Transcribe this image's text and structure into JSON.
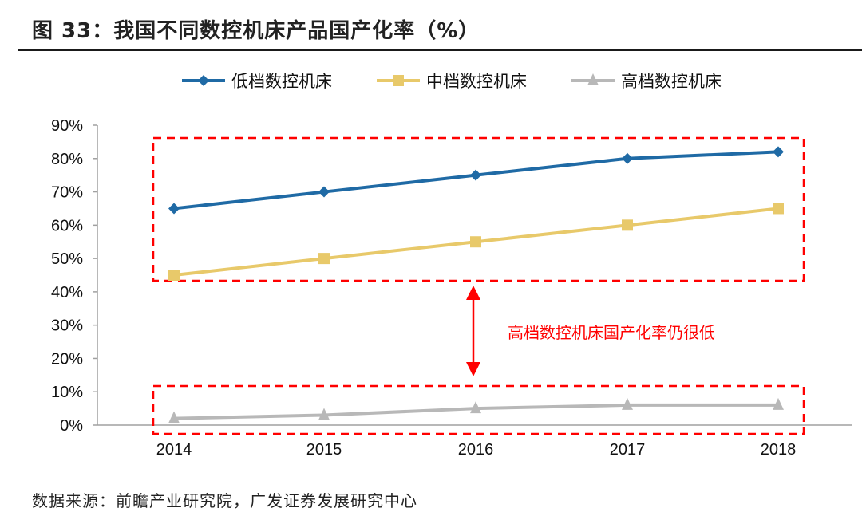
{
  "title": "图 33：我国不同数控机床产品国产化率（%）",
  "source": "数据来源：前瞻产业研究院，广发证券发展研究中心",
  "chart_data": {
    "type": "line",
    "categories": [
      "2014",
      "2015",
      "2016",
      "2017",
      "2018"
    ],
    "ylim": [
      0,
      90
    ],
    "yticks": [
      "0%",
      "10%",
      "20%",
      "30%",
      "40%",
      "50%",
      "60%",
      "70%",
      "80%",
      "90%"
    ],
    "legend_position": "top",
    "series": [
      {
        "name": "低档数控机床",
        "values": [
          65,
          70,
          75,
          80,
          82
        ],
        "color": "#1f6aa5",
        "marker": "diamond"
      },
      {
        "name": "中档数控机床",
        "values": [
          45,
          50,
          55,
          60,
          65
        ],
        "color": "#e8c96a",
        "marker": "square"
      },
      {
        "name": "高档数控机床",
        "values": [
          2,
          3,
          5,
          6,
          6
        ],
        "color": "#b8b8b8",
        "marker": "triangle"
      }
    ],
    "annotation": {
      "text": "高档数控机床国产化率仍很低",
      "color": "#ff0000"
    }
  }
}
